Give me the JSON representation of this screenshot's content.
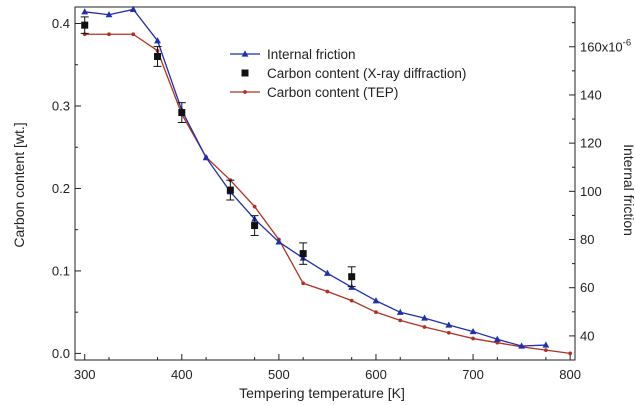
{
  "chart_data": {
    "type": "line",
    "title": "",
    "xlabel": "Tempering temperature [K]",
    "ylabel_left": "Carbon content [wt.]",
    "ylabel_right": "Internal friction",
    "xlim": [
      290,
      805
    ],
    "ylim_left": [
      -0.008,
      0.42
    ],
    "ylim_right": [
      30,
      176.5
    ],
    "x_ticks": [
      "300",
      "400",
      "500",
      "600",
      "700",
      "800"
    ],
    "y_left_ticks": [
      "0.0",
      "0.1",
      "0.2",
      "0.3",
      "0.4"
    ],
    "y_right_ticks": [
      "40",
      "60",
      "80",
      "100",
      "120",
      "140",
      "160x10"
    ],
    "y_right_top_exponent": "-6",
    "legend_position": "top-right",
    "series": [
      {
        "name": "Internal friction",
        "axis": "right",
        "color": "#1f2fb0",
        "marker": "triangle",
        "x": [
          300,
          325,
          350,
          375,
          400,
          425,
          450,
          475,
          500,
          525,
          550,
          575,
          600,
          625,
          650,
          675,
          700,
          725,
          750,
          775
        ],
        "y": [
          174.5,
          173.3,
          175.5,
          162.5,
          133.6,
          114,
          99.8,
          88.5,
          79,
          72.3,
          66,
          60.2,
          54.6,
          49.8,
          47.4,
          44.5,
          41.8,
          38.6,
          35.8,
          36.2
        ]
      },
      {
        "name": "Carbon content (X-ray diffraction)",
        "axis": "left",
        "color": "#111111",
        "marker": "square",
        "x": [
          300,
          375,
          400,
          450,
          475,
          525,
          575
        ],
        "y": [
          0.398,
          0.36,
          0.292,
          0.198,
          0.155,
          0.121,
          0.093
        ],
        "err": [
          0.01,
          0.012,
          0.012,
          0.012,
          0.012,
          0.013,
          0.012
        ]
      },
      {
        "name": "Carbon content (TEP)",
        "axis": "left",
        "color": "#b23222",
        "marker": "circle",
        "x": [
          300,
          325,
          350,
          375,
          400,
          425,
          450,
          475,
          500,
          525,
          550,
          575,
          600,
          625,
          650,
          675,
          700,
          725,
          750,
          775,
          800
        ],
        "y": [
          0.387,
          0.387,
          0.387,
          0.367,
          0.29,
          0.238,
          0.21,
          0.178,
          0.138,
          0.085,
          0.075,
          0.064,
          0.05,
          0.04,
          0.032,
          0.025,
          0.018,
          0.013,
          0.008,
          0.004,
          0.0
        ]
      }
    ]
  }
}
